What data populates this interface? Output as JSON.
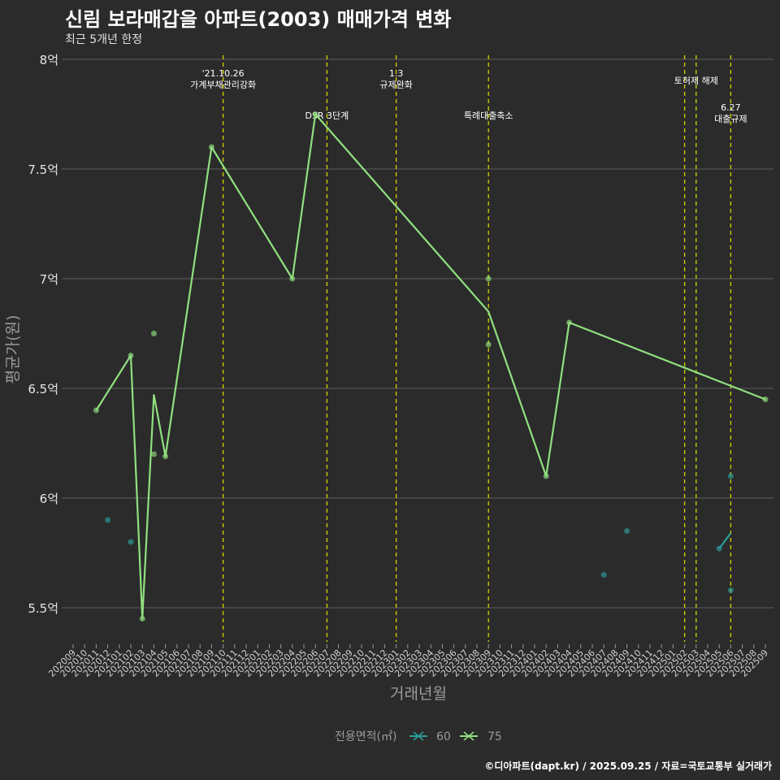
{
  "header": {
    "title": "신림 보라매갑을 아파트(2003) 매매가격 변화",
    "subtitle": "최근 5개년 한정"
  },
  "footer": {
    "caption": "©디아파트(dapt.kr) / 2025.09.25 / 자료=국토교통부 실거래가"
  },
  "colors": {
    "background": "#2b2b2b",
    "grid": "#5c5c5c",
    "series_60": "#2b9e9a",
    "series_75": "#90e07f",
    "event_line": "#d4d400"
  },
  "chart_data": {
    "type": "line",
    "title": "신림 보라매갑을 아파트(2003) 매매가격 변화",
    "xlabel": "거래년월",
    "ylabel": "평균가(원)",
    "ylim": [
      5.32,
      8.0
    ],
    "y_ticks": [
      {
        "value": 5.5,
        "label": "5.5억"
      },
      {
        "value": 6.0,
        "label": "6억"
      },
      {
        "value": 6.5,
        "label": "6.5억"
      },
      {
        "value": 7.0,
        "label": "7억"
      },
      {
        "value": 7.5,
        "label": "7.5억"
      },
      {
        "value": 8.0,
        "label": "8억"
      }
    ],
    "categories": [
      "202009",
      "202010",
      "202011",
      "202012",
      "202101",
      "202102",
      "202103",
      "202104",
      "202105",
      "202106",
      "202107",
      "202108",
      "202109",
      "202110",
      "202111",
      "202112",
      "202201",
      "202202",
      "202203",
      "202204",
      "202205",
      "202206",
      "202207",
      "202208",
      "202209",
      "202210",
      "202211",
      "202212",
      "202301",
      "202302",
      "202303",
      "202304",
      "202305",
      "202306",
      "202307",
      "202308",
      "202309",
      "202310",
      "202311",
      "202312",
      "202401",
      "202402",
      "202403",
      "202404",
      "202405",
      "202406",
      "202407",
      "202408",
      "202409",
      "202410",
      "202411",
      "202412",
      "202501",
      "202502",
      "202503",
      "202504",
      "202505",
      "202506",
      "202507",
      "202508",
      "202509"
    ],
    "legend": {
      "title": "전용면적(㎡)",
      "entries": [
        "60",
        "75"
      ]
    },
    "series": [
      {
        "name": "60",
        "color": "#2b9e9a",
        "line": [
          [
            "202505",
            5.77
          ],
          [
            "202506",
            5.84
          ]
        ],
        "points": [
          [
            "202012",
            5.9
          ],
          [
            "202102",
            5.8
          ],
          [
            "202407",
            5.65
          ],
          [
            "202409",
            5.85
          ],
          [
            "202505",
            5.77
          ],
          [
            "202506",
            6.1
          ],
          [
            "202506",
            5.58
          ]
        ]
      },
      {
        "name": "75",
        "color": "#90e07f",
        "line": [
          [
            "202011",
            6.4
          ],
          [
            "202102",
            6.65
          ],
          [
            "202103",
            5.45
          ],
          [
            "202104",
            6.47
          ],
          [
            "202105",
            6.19
          ],
          [
            "202109",
            7.6
          ],
          [
            "202204",
            7.0
          ],
          [
            "202206",
            7.75
          ],
          [
            "202309",
            6.85
          ],
          [
            "202402",
            6.1
          ],
          [
            "202404",
            6.8
          ],
          [
            "202509",
            6.45
          ]
        ],
        "points": [
          [
            "202011",
            6.4
          ],
          [
            "202102",
            6.65
          ],
          [
            "202103",
            5.45
          ],
          [
            "202104",
            6.75
          ],
          [
            "202104",
            6.2
          ],
          [
            "202105",
            6.19
          ],
          [
            "202109",
            7.6
          ],
          [
            "202204",
            7.0
          ],
          [
            "202206",
            7.75
          ],
          [
            "202309",
            7.0
          ],
          [
            "202309",
            6.7
          ],
          [
            "202402",
            6.1
          ],
          [
            "202404",
            6.8
          ],
          [
            "202509",
            6.45
          ]
        ]
      }
    ],
    "events": [
      {
        "month": "202110",
        "lines": [
          "'21.10.26",
          "가계부채관리강화"
        ],
        "row": "top"
      },
      {
        "month": "202207",
        "lines": [
          "DSR 3단계"
        ],
        "row": "low"
      },
      {
        "month": "202301",
        "lines": [
          "1.3",
          "규제완화"
        ],
        "row": "top"
      },
      {
        "month": "202309",
        "lines": [
          "특례대출축소"
        ],
        "row": "low"
      },
      {
        "month": "202502",
        "lines": [],
        "row": "none"
      },
      {
        "month": "202503",
        "lines": [
          "토허제 해제"
        ],
        "row": "mid"
      },
      {
        "month": "202506",
        "lines": [
          "6.27",
          "대출규제"
        ],
        "row": "lower"
      }
    ]
  }
}
